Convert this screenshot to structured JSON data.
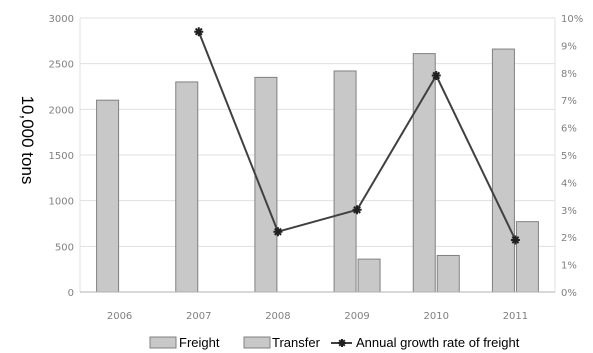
{
  "chart_data": {
    "type": "bar",
    "categories": [
      "2006",
      "2007",
      "2008",
      "2009",
      "2010",
      "2011"
    ],
    "series": [
      {
        "name": "Freight",
        "kind": "bar",
        "values": [
          2100,
          2300,
          2350,
          2420,
          2610,
          2660
        ]
      },
      {
        "name": "Transfer",
        "kind": "bar",
        "values": [
          null,
          null,
          null,
          360,
          400,
          770
        ]
      },
      {
        "name": "Annual growth rate of freight",
        "kind": "line",
        "axis": "right",
        "values": [
          null,
          9.5,
          2.2,
          3.0,
          7.9,
          1.9
        ]
      }
    ],
    "ylabel": "10,000 tons",
    "ylim": [
      0,
      3000
    ],
    "yticks": [
      "0",
      "500",
      "1000",
      "1500",
      "2000",
      "2500",
      "3000"
    ],
    "y2lim": [
      0,
      10
    ],
    "y2ticks": [
      "0%",
      "1%",
      "2%",
      "3%",
      "4%",
      "5%",
      "6%",
      "7%",
      "8%",
      "9%",
      "10%"
    ],
    "grid": "horizontal",
    "legend": "bottom",
    "colors": {
      "freight_fill": "#c8c8c8",
      "transfer_fill": "#c8c8c8",
      "bar_stroke": "#808080",
      "line": "#404040",
      "grid": "#e0e0e0"
    }
  }
}
